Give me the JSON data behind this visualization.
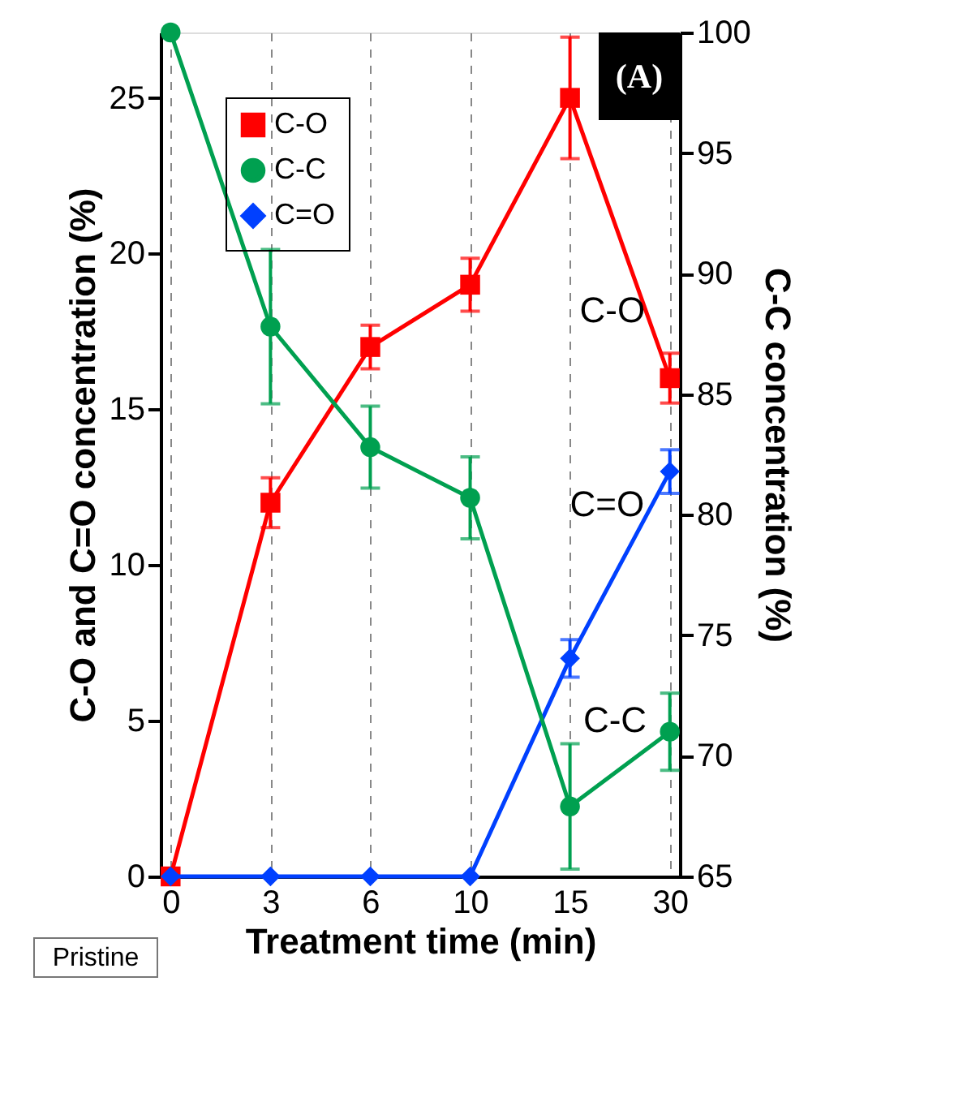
{
  "chart_data": {
    "type": "line",
    "xlabel": "Treatment time (min)",
    "ylabel": "C-O and C=O concentration  (%)",
    "y2label": "C-C concentration  (%)",
    "categories": [
      "0",
      "3",
      "6",
      "10",
      "15",
      "30"
    ],
    "series": [
      {
        "name": "C-O",
        "color": "#ff0000",
        "marker": "square",
        "values": [
          0,
          12,
          17,
          19,
          25,
          16
        ],
        "errors": [
          null,
          0.8,
          0.7,
          0.85,
          1.95,
          0.8
        ]
      },
      {
        "name": "C-C",
        "color": "#00a050",
        "marker": "circle",
        "axis": "y2",
        "values": [
          100,
          87.8,
          82.8,
          80.7,
          67.9,
          71
        ],
        "errors": [
          null,
          3.2,
          1.7,
          1.7,
          2.6,
          1.6
        ]
      },
      {
        "name": "C=O",
        "color": "#0040ff",
        "marker": "diamond",
        "values": [
          0,
          0,
          0,
          0,
          7,
          13
        ],
        "errors": [
          null,
          null,
          null,
          null,
          0.6,
          0.7
        ]
      }
    ],
    "ylim": [
      0,
      27.1
    ],
    "yticks": [
      0,
      5,
      10,
      15,
      20,
      25
    ],
    "y2lim": [
      65,
      100
    ],
    "y2ticks": [
      65,
      70,
      75,
      80,
      85,
      90,
      95,
      100
    ],
    "grid": "x",
    "legend": "top left",
    "line_style": "solid",
    "annotations": [
      "(A)",
      "C-O",
      "C=O",
      "C-C",
      "Pristine"
    ]
  }
}
